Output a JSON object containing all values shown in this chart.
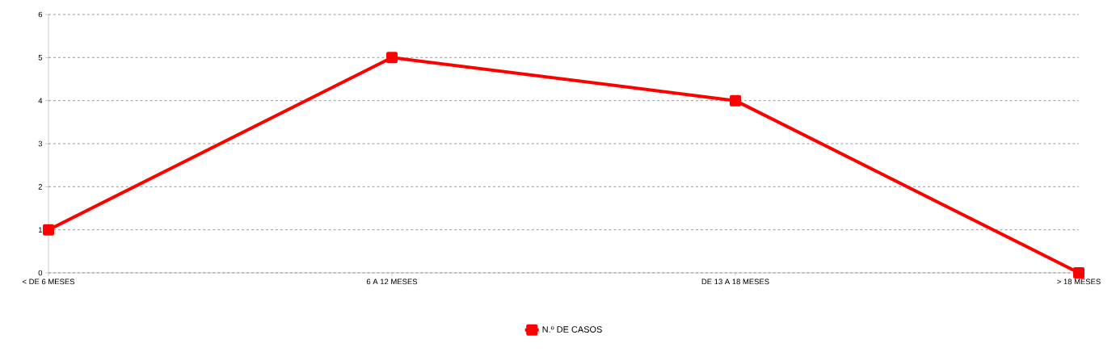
{
  "chart_data": {
    "type": "line",
    "categories": [
      "< DE 6 MESES",
      "6 A 12 MESES",
      "DE 13 A 18 MESES",
      "> 18 MESES"
    ],
    "series": [
      {
        "name": "N.º DE CASOS",
        "color": "#ff0000",
        "values": [
          1,
          5,
          4,
          0
        ]
      }
    ],
    "ylim": [
      0,
      6
    ],
    "yticks": [
      0,
      1,
      2,
      3,
      4,
      5,
      6
    ],
    "grid": "y",
    "legend": "bottom",
    "marker": "square",
    "line_style": "solid"
  }
}
